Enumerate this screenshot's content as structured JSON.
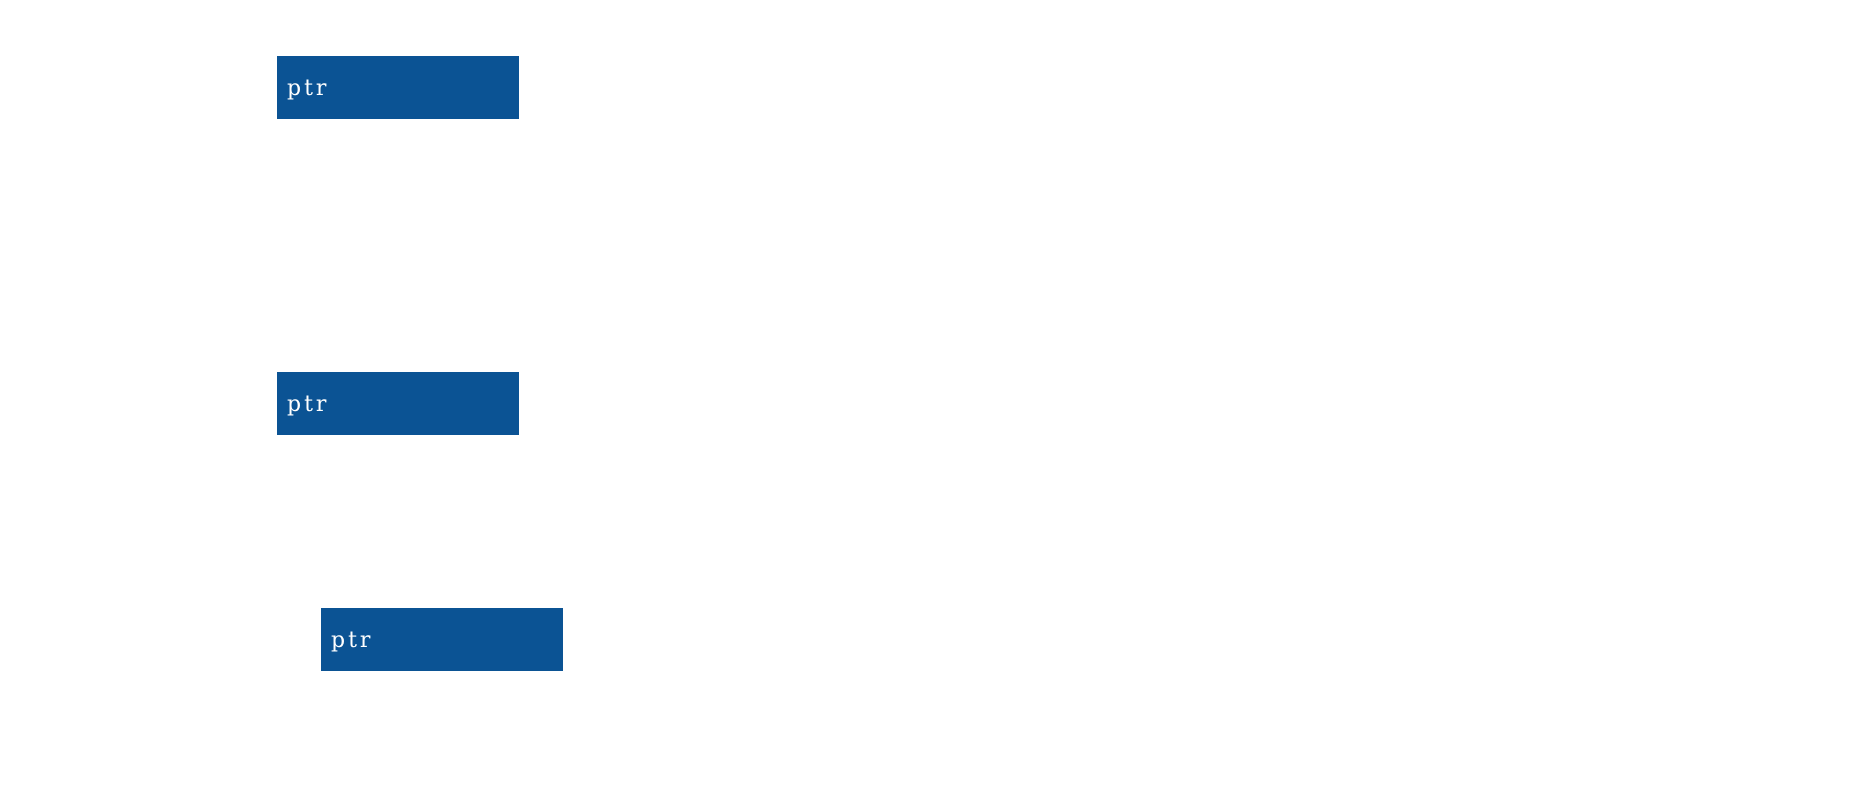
{
  "boxes": [
    {
      "label": "ptr"
    },
    {
      "label": "ptr"
    },
    {
      "label": "ptr"
    }
  ],
  "colors": {
    "box_fill": "#0b5394",
    "box_text": "#ffffff",
    "background": "#ffffff"
  }
}
